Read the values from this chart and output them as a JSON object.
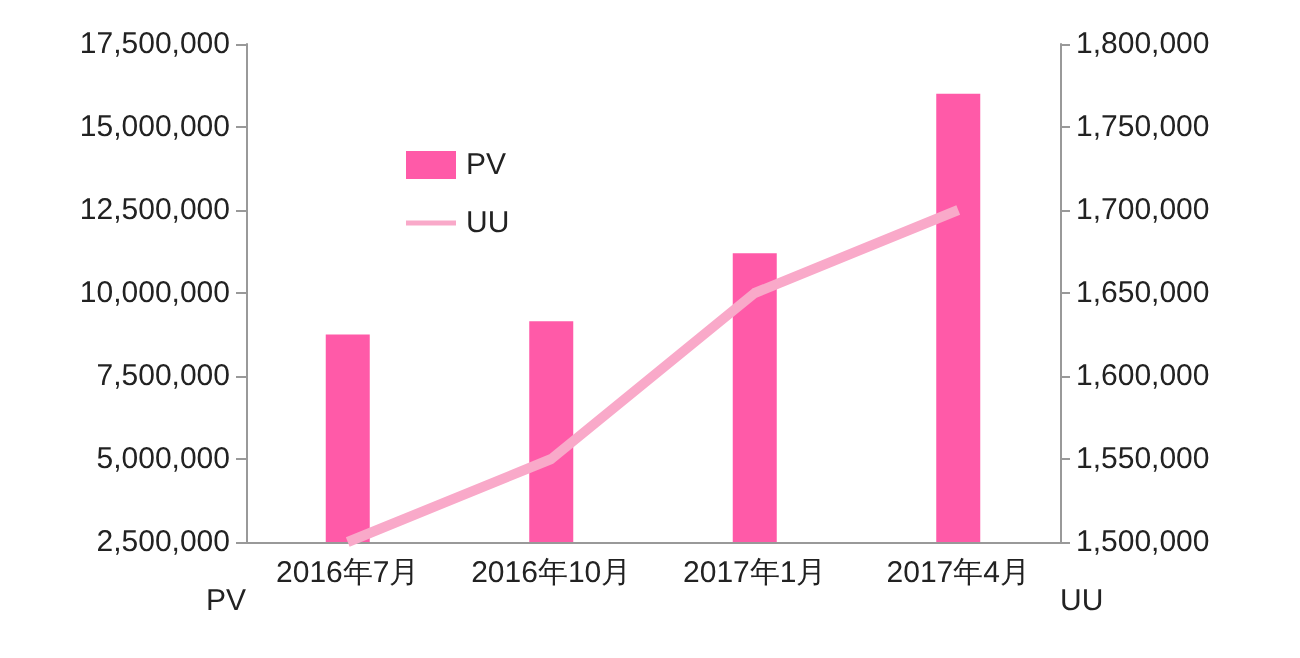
{
  "chart_data": {
    "type": "bar",
    "categories": [
      "2016年7月",
      "2016年10月",
      "2017年1月",
      "2017年4月"
    ],
    "ylabel": "PV",
    "y2label": "UU",
    "series": [
      {
        "name": "PV",
        "color": "#ff5aa8",
        "values": [
          8750000,
          9150000,
          11200000,
          16000000
        ]
      },
      {
        "name": "UU",
        "type": "line",
        "axis": "y2",
        "color": "#f9a9c9",
        "values": [
          1500000,
          1550000,
          1650000,
          1700000
        ]
      }
    ],
    "ylim": [
      2500000,
      17500000
    ],
    "yticks": [
      {
        "value": 2500000,
        "label": "2,500,000"
      },
      {
        "value": 5000000,
        "label": "5,000,000"
      },
      {
        "value": 7500000,
        "label": "7,500,000"
      },
      {
        "value": 10000000,
        "label": "10,000,000"
      },
      {
        "value": 12500000,
        "label": "12,500,000"
      },
      {
        "value": 15000000,
        "label": "15,000,000"
      },
      {
        "value": 17500000,
        "label": "17,500,000"
      }
    ],
    "y2lim": [
      1500000,
      1800000
    ],
    "y2ticks": [
      {
        "value": 1500000,
        "label": "1,500,000"
      },
      {
        "value": 1550000,
        "label": "1,550,000"
      },
      {
        "value": 1600000,
        "label": "1,600,000"
      },
      {
        "value": 1650000,
        "label": "1,650,000"
      },
      {
        "value": 1700000,
        "label": "1,700,000"
      },
      {
        "value": 1750000,
        "label": "1,750,000"
      },
      {
        "value": 1800000,
        "label": "1,800,000"
      }
    ],
    "grid": false,
    "legend": "top left",
    "marker": "none"
  }
}
